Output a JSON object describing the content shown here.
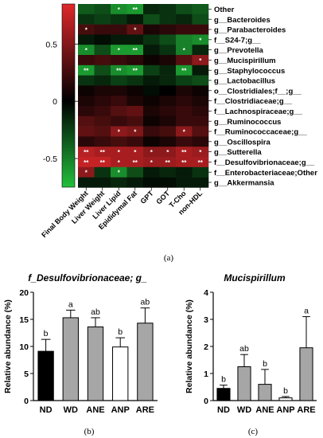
{
  "panel_labels": {
    "a": "(a)",
    "b": "(b)",
    "c": "(c)"
  },
  "chart_data": [
    {
      "type": "heatmap",
      "colorbar": {
        "range": [
          -0.75,
          0.85
        ],
        "ticks": [
          "0.5",
          "0",
          "-0.5"
        ],
        "tick_values": [
          0.5,
          0,
          -0.5
        ],
        "colors": {
          "negative": "#22c03c",
          "zero": "#000000",
          "positive": "#e0282b"
        }
      },
      "columns": [
        "Final Body Weight",
        "Liver Weight",
        "Liver Lipid",
        "Epididymal Fat",
        "GPT",
        "GOT",
        "T-Cho",
        "non-HDL"
      ],
      "rows": [
        "Other",
        "g__Bacteroides",
        "g__Parabacteroides",
        "f__S24-7;g__",
        "g__Prevotella",
        "g__Mucispirillum",
        "g__Staphylococcus",
        "g__Lactobacillus",
        "o__Clostridiales;f__;g__",
        "f__Clostridiaceae;g__",
        "f__Lachnospiraceae;g__",
        "g__Ruminococcus",
        "f__Ruminococcaceae;g__",
        "g__Oscillospira",
        "g__Sutterella",
        "f__Desulfovibrionaceae;g__",
        "f__Enterobacteriaceae;Other",
        "g__Akkermansia"
      ],
      "values": [
        [
          -0.35,
          -0.3,
          -0.55,
          -0.6,
          -0.15,
          -0.2,
          -0.3,
          -0.35
        ],
        [
          -0.2,
          -0.25,
          -0.2,
          -0.1,
          -0.3,
          -0.2,
          -0.15,
          -0.3
        ],
        [
          0.25,
          0.2,
          0.2,
          0.35,
          0.1,
          0.15,
          0.2,
          0.2
        ],
        [
          -0.1,
          -0.05,
          -0.1,
          -0.1,
          -0.2,
          -0.3,
          -0.5,
          -0.55
        ],
        [
          -0.55,
          -0.3,
          -0.6,
          -0.6,
          -0.1,
          -0.2,
          -0.5,
          -0.15
        ],
        [
          0.2,
          0.25,
          0.2,
          0.15,
          0.05,
          0.1,
          0.3,
          0.5
        ],
        [
          -0.6,
          -0.3,
          -0.55,
          -0.6,
          -0.25,
          -0.15,
          -0.6,
          -0.1
        ],
        [
          -0.2,
          -0.15,
          -0.25,
          -0.2,
          -0.1,
          -0.15,
          -0.25,
          -0.3
        ],
        [
          0.05,
          0.1,
          0.1,
          0.05,
          -0.05,
          0.0,
          0.1,
          0.05
        ],
        [
          0.1,
          0.15,
          0.2,
          0.1,
          0.05,
          0.1,
          0.15,
          0.1
        ],
        [
          0.15,
          0.2,
          0.3,
          0.35,
          0.1,
          0.15,
          0.2,
          0.15
        ],
        [
          0.3,
          0.25,
          0.2,
          0.25,
          0.05,
          0.1,
          0.2,
          0.2
        ],
        [
          0.35,
          0.3,
          0.5,
          0.45,
          0.2,
          0.25,
          0.5,
          0.3
        ],
        [
          0.15,
          0.2,
          0.25,
          0.2,
          0.05,
          0.1,
          0.2,
          0.15
        ],
        [
          0.65,
          0.6,
          0.6,
          0.6,
          0.5,
          0.5,
          0.6,
          0.55
        ],
        [
          0.7,
          0.7,
          0.6,
          0.6,
          0.55,
          0.55,
          0.6,
          0.6
        ],
        [
          0.5,
          -0.2,
          -0.55,
          -0.3,
          -0.1,
          -0.15,
          -0.1,
          -0.2
        ],
        [
          -0.1,
          -0.1,
          -0.15,
          -0.1,
          -0.05,
          -0.05,
          -0.1,
          -0.1
        ]
      ],
      "significance": [
        [
          "",
          "",
          "*",
          "**",
          "",
          "",
          "",
          ""
        ],
        [
          "",
          "",
          "",
          "",
          "",
          "",
          "",
          ""
        ],
        [
          "*",
          "",
          "",
          "*",
          "",
          "",
          "",
          ""
        ],
        [
          "",
          "",
          "",
          "",
          "",
          "",
          "",
          "*"
        ],
        [
          "*",
          "",
          "*",
          "**",
          "",
          "",
          "*",
          ""
        ],
        [
          "",
          "",
          "",
          "",
          "",
          "",
          "",
          "*"
        ],
        [
          "**",
          "",
          "**",
          "**",
          "",
          "",
          "**",
          ""
        ],
        [
          "",
          "",
          "",
          "",
          "",
          "",
          "",
          ""
        ],
        [
          "",
          "",
          "",
          "",
          "",
          "",
          "",
          ""
        ],
        [
          "",
          "",
          "",
          "",
          "",
          "",
          "",
          ""
        ],
        [
          "",
          "",
          "",
          "",
          "",
          "",
          "",
          ""
        ],
        [
          "",
          "",
          "",
          "",
          "",
          "",
          "",
          ""
        ],
        [
          "",
          "",
          "*",
          "*",
          "",
          "",
          "*",
          ""
        ],
        [
          "",
          "",
          "",
          "",
          "",
          "",
          "",
          ""
        ],
        [
          "**",
          "**",
          "*",
          "*",
          "*",
          "*",
          "**",
          "*"
        ],
        [
          "**",
          "**",
          "*",
          "**",
          "*",
          "**",
          "**",
          "**"
        ],
        [
          "*",
          "",
          "*",
          "",
          "",
          "",
          "",
          ""
        ],
        [
          "",
          "",
          "",
          "",
          "",
          "",
          "",
          ""
        ]
      ]
    },
    {
      "type": "bar",
      "title": "f_Desulfovibrionaceae; g_",
      "ylabel": "Relative abundance (%)",
      "ylim": [
        0,
        20
      ],
      "yticks": [
        0,
        5,
        10,
        15,
        20
      ],
      "categories": [
        "ND",
        "WD",
        "ANE",
        "ANP",
        "ARE"
      ],
      "values": [
        9.1,
        15.3,
        13.6,
        9.9,
        14.3
      ],
      "errors": [
        2.2,
        1.4,
        1.7,
        1.7,
        2.8
      ],
      "letters": [
        "b",
        "a",
        "ab",
        "b",
        "ab"
      ],
      "colors": [
        "#000000",
        "#a6a6a6",
        "#a6a6a6",
        "#ffffff",
        "#a6a6a6"
      ]
    },
    {
      "type": "bar",
      "title": "Mucispirillum",
      "ylabel": "Relative abundance (%)",
      "ylim": [
        0,
        4
      ],
      "yticks": [
        0,
        1,
        2,
        3,
        4
      ],
      "categories": [
        "ND",
        "WD",
        "ANE",
        "ANP",
        "ARE"
      ],
      "values": [
        0.45,
        1.25,
        0.6,
        0.1,
        1.95
      ],
      "errors": [
        0.12,
        0.45,
        0.55,
        0.05,
        1.15
      ],
      "letters": [
        "b",
        "ab",
        "b",
        "b",
        "a"
      ],
      "colors": [
        "#000000",
        "#a6a6a6",
        "#a6a6a6",
        "#ffffff",
        "#a6a6a6"
      ]
    }
  ]
}
